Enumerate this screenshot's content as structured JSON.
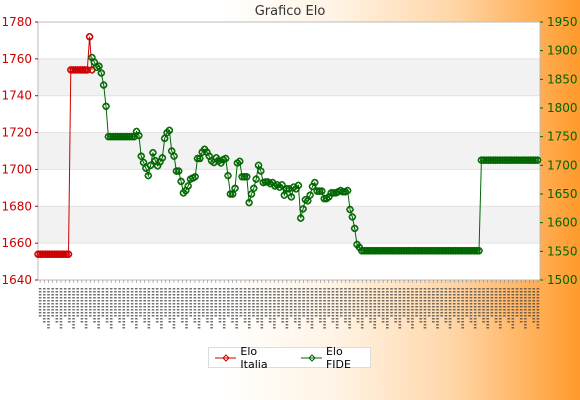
{
  "chart_data": {
    "type": "line",
    "title": "Grafico Elo",
    "left_axis": {
      "ylim": [
        1640,
        1780
      ],
      "ticks": [
        1640,
        1660,
        1680,
        1700,
        1720,
        1740,
        1760,
        1780
      ]
    },
    "right_axis": {
      "ylim": [
        1500,
        1950
      ],
      "ticks": [
        1500,
        1550,
        1600,
        1650,
        1700,
        1750,
        1800,
        1850,
        1900,
        1950
      ]
    },
    "grid": true,
    "legend_position": "bottom",
    "x_tick_count": 120,
    "series": [
      {
        "name": "Elo Italia",
        "axis": "left",
        "color": "#cc0000",
        "values": [
          1654,
          1654,
          1654,
          1654,
          1654,
          1654,
          1654,
          1654,
          1654,
          1654,
          1654,
          1654,
          1654,
          1654,
          1754,
          1754,
          1754,
          1754,
          1754,
          1754,
          1754,
          1754,
          1772,
          1754
        ]
      },
      {
        "name": "Elo FIDE",
        "axis": "right",
        "color": "#006600",
        "start_index": 23,
        "values": [
          1888,
          1880,
          1871,
          1873,
          1861,
          1840,
          1803,
          1750,
          1750,
          1750,
          1750,
          1750,
          1750,
          1750,
          1750,
          1750,
          1750,
          1750,
          1750,
          1759,
          1752,
          1716,
          1705,
          1695,
          1682,
          1700,
          1722,
          1708,
          1699,
          1706,
          1713,
          1747,
          1757,
          1761,
          1725,
          1716,
          1690,
          1690,
          1672,
          1652,
          1656,
          1664,
          1676,
          1678,
          1680,
          1712,
          1712,
          1723,
          1728,
          1723,
          1716,
          1708,
          1705,
          1713,
          1708,
          1704,
          1710,
          1712,
          1682,
          1650,
          1650,
          1660,
          1704,
          1707,
          1680,
          1680,
          1680,
          1635,
          1650,
          1660,
          1676,
          1700,
          1690,
          1670,
          1671,
          1671,
          1668,
          1670,
          1664,
          1666,
          1662,
          1666,
          1648,
          1659,
          1659,
          1645,
          1662,
          1659,
          1665,
          1608,
          1624,
          1640,
          1638,
          1648,
          1663,
          1670,
          1655,
          1655,
          1655,
          1642,
          1642,
          1645,
          1652,
          1652,
          1652,
          1654,
          1656,
          1654,
          1654,
          1656,
          1623,
          1610,
          1590,
          1562,
          1557,
          1551,
          1551,
          1551,
          1551,
          1551,
          1551,
          1551,
          1551,
          1551,
          1551,
          1551,
          1551,
          1551,
          1551,
          1551,
          1551,
          1551,
          1551,
          1551,
          1551,
          1551,
          1551,
          1551,
          1551,
          1551,
          1551,
          1551,
          1551,
          1551,
          1551,
          1551,
          1551,
          1551,
          1551,
          1551,
          1551,
          1551,
          1551,
          1551,
          1551,
          1551,
          1551,
          1551,
          1551,
          1551,
          1551,
          1551,
          1551,
          1551,
          1551,
          1551,
          1709,
          1709,
          1709,
          1709,
          1709,
          1709,
          1709,
          1709,
          1709,
          1709,
          1709,
          1709,
          1709,
          1709,
          1709,
          1709,
          1709,
          1709,
          1709,
          1709,
          1709,
          1709,
          1709,
          1709,
          1709
        ]
      }
    ]
  }
}
